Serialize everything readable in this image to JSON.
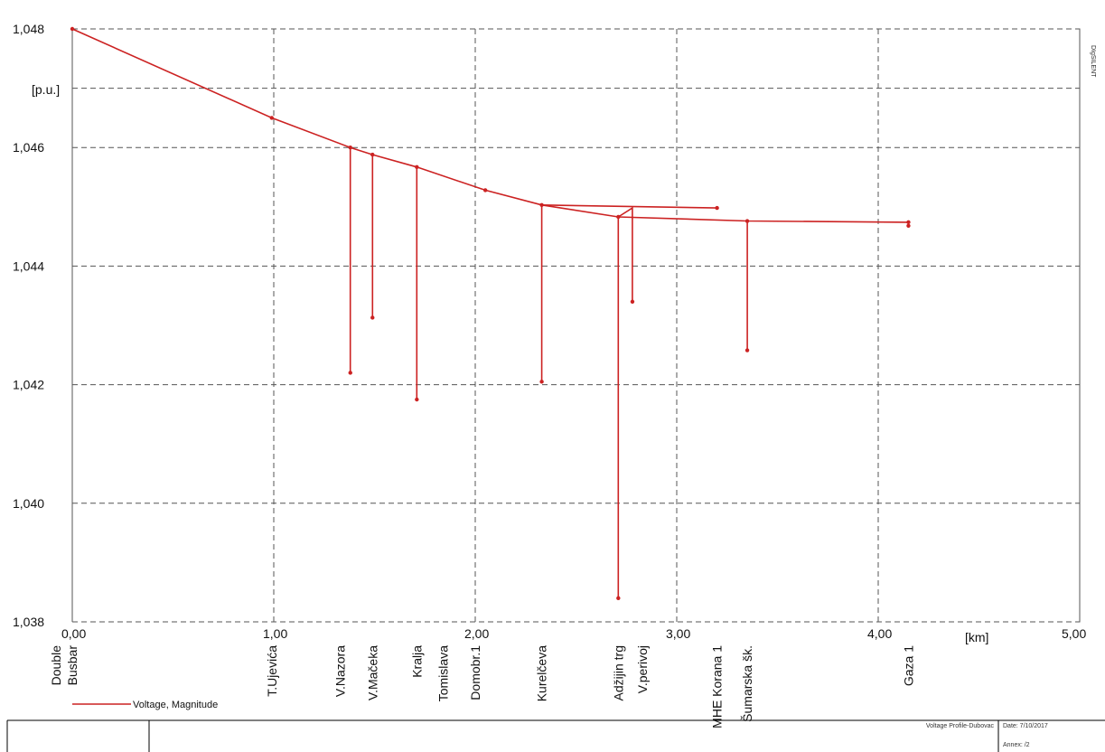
{
  "chart_data": {
    "type": "line",
    "x_unit": "[km]",
    "y_unit": "[p.u.]",
    "xlim": [
      0,
      5
    ],
    "ylim": [
      1.038,
      1.048
    ],
    "x_ticks": [
      "0,00",
      "1,00",
      "2,00",
      "3,00",
      "4,00",
      "5,00"
    ],
    "x_tick_values": [
      0,
      1,
      2,
      3,
      4,
      5
    ],
    "y_ticks": [
      "1,038",
      "1,040",
      "1,042",
      "1,044",
      "1,046",
      "1,048"
    ],
    "y_tick_values": [
      1.038,
      1.04,
      1.042,
      1.044,
      1.046,
      1.048
    ],
    "grid": true,
    "legend_position": "bottom-left",
    "series": [
      {
        "name": "Voltage, Magnitude",
        "color": "#cc2222",
        "main_line": [
          [
            0,
            1.048
          ],
          [
            0.99,
            1.0465
          ],
          [
            1.38,
            1.046
          ],
          [
            1.49,
            1.04588
          ],
          [
            1.71,
            1.04567
          ],
          [
            2.05,
            1.04528
          ],
          [
            2.33,
            1.04503
          ],
          [
            2.71,
            1.04483
          ],
          [
            3.35,
            1.04476
          ],
          [
            4.15,
            1.04474
          ]
        ],
        "branches": [
          [
            [
              2.33,
              1.04503
            ],
            [
              3.2,
              1.04498
            ]
          ],
          [
            [
              2.71,
              1.04483
            ],
            [
              2.78,
              1.04498
            ],
            [
              2.78,
              1.0434
            ]
          ],
          [
            [
              1.38,
              1.046
            ],
            [
              1.38,
              1.0422
            ]
          ],
          [
            [
              1.49,
              1.04588
            ],
            [
              1.49,
              1.04313
            ]
          ],
          [
            [
              1.71,
              1.04567
            ],
            [
              1.71,
              1.04175
            ]
          ],
          [
            [
              2.33,
              1.04503
            ],
            [
              2.33,
              1.04205
            ]
          ],
          [
            [
              2.71,
              1.04483
            ],
            [
              2.71,
              1.0384
            ]
          ],
          [
            [
              3.35,
              1.04476
            ],
            [
              3.35,
              1.04258
            ]
          ],
          [
            [
              4.15,
              1.04474
            ],
            [
              4.15,
              1.04468
            ]
          ]
        ]
      }
    ],
    "stations": [
      {
        "label": "Double",
        "x": -0.08
      },
      {
        "label": "Busbar",
        "x": 0.0
      },
      {
        "label": "T.Ujevića",
        "x": 0.99
      },
      {
        "label": "V.Nazora",
        "x": 1.33
      },
      {
        "label": "V.Mačeka",
        "x": 1.49
      },
      {
        "label": "Kralja",
        "x": 1.71
      },
      {
        "label": "Tomislava",
        "x": 1.84
      },
      {
        "label": "Domobr.1",
        "x": 2.0
      },
      {
        "label": "Kurelčeva",
        "x": 2.33
      },
      {
        "label": "Adžijin trg",
        "x": 2.71
      },
      {
        "label": "V.perivoj",
        "x": 2.83
      },
      {
        "label": "MHE Korana 1",
        "x": 3.2
      },
      {
        "label": "Šumarska šk.",
        "x": 3.35
      },
      {
        "label": "Gaza 1",
        "x": 4.15
      }
    ]
  },
  "legend": {
    "label": "Voltage, Magnitude",
    "color": "#cc2222"
  },
  "footer": {
    "title": "Voltage Profile-Dubovac",
    "date": "Date: 7/10/2017",
    "annex": "Annex:   /2"
  },
  "watermark": "DIgSILENT"
}
